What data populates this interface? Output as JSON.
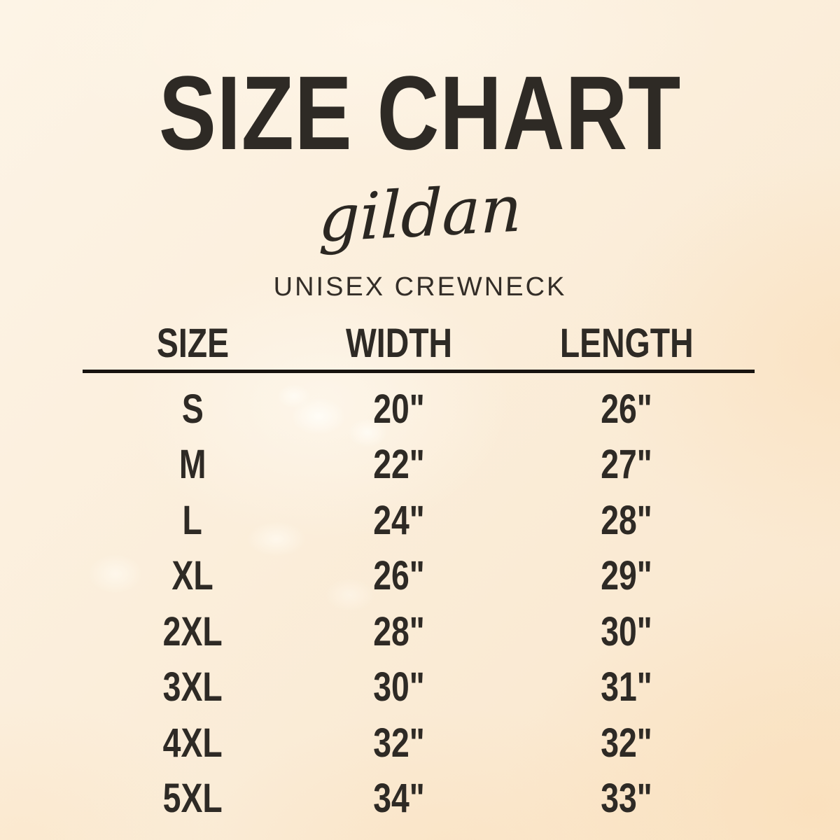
{
  "chart_data": {
    "type": "table",
    "title": "SIZE CHART",
    "brand": "gildan",
    "subtitle": "UNISEX CREWNECK",
    "columns": [
      "SIZE",
      "WIDTH",
      "LENGTH"
    ],
    "rows": [
      [
        "S",
        "20\"",
        "26\""
      ],
      [
        "M",
        "22\"",
        "27\""
      ],
      [
        "L",
        "24\"",
        "28\""
      ],
      [
        "XL",
        "26\"",
        "29\""
      ],
      [
        "2XL",
        "28\"",
        "30\""
      ],
      [
        "3XL",
        "30\"",
        "31\""
      ],
      [
        "4XL",
        "32\"",
        "32\""
      ],
      [
        "5XL",
        "34\"",
        "33\""
      ]
    ]
  },
  "colors": {
    "background_light": "#fdf5e9",
    "background_base": "#fbeedb",
    "background_warm": "#fbe3c0",
    "text": "#2e2a25",
    "divider": "#17130f"
  }
}
